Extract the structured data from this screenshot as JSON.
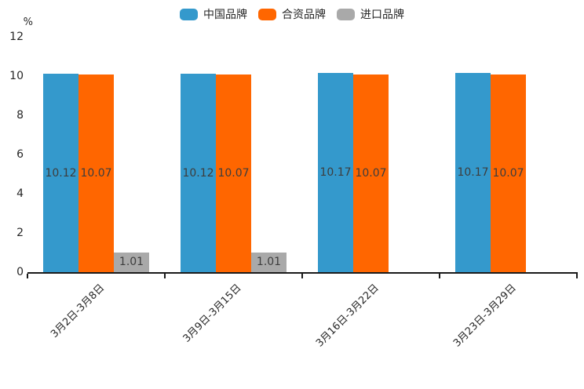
{
  "chart_data": {
    "type": "bar",
    "title": "",
    "ylabel": "%",
    "xlabel": "",
    "categories": [
      "3月2日-3月8日",
      "3月9日-3月15日",
      "3月16日-3月22日",
      "3月23日-3月29日"
    ],
    "series": [
      {
        "name": "中国品牌",
        "color": "#3499CC",
        "values": [
          10.12,
          10.12,
          10.17,
          10.17
        ]
      },
      {
        "name": "合资品牌",
        "color": "#FF6600",
        "values": [
          10.07,
          10.07,
          10.07,
          10.07
        ]
      },
      {
        "name": "进口品牌",
        "color": "#A9A9A9",
        "values": [
          1.01,
          1.01,
          null,
          null
        ]
      }
    ],
    "value_labels": [
      "10.12",
      "10.07",
      "1.01",
      "10.12",
      "10.07",
      "1.01",
      "10.17",
      "10.07",
      "10.17",
      "10.07"
    ],
    "ylim": [
      0,
      12
    ],
    "yticks": [
      0,
      2,
      4,
      6,
      8,
      10,
      12
    ],
    "grid": false,
    "legend_position": "top"
  }
}
